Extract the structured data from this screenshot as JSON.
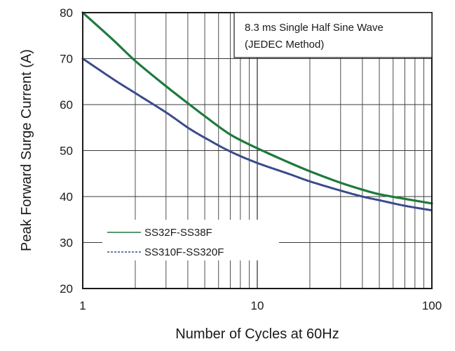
{
  "chart_data": {
    "type": "line",
    "title": "",
    "xlabel": "Number of Cycles at 60Hz",
    "ylabel": "Peak Forward Surge Current (A)",
    "x_scale": "log",
    "xlim": [
      1,
      100
    ],
    "ylim": [
      20,
      80
    ],
    "grid": true,
    "x_ticks": [
      1,
      10,
      100
    ],
    "x_tick_labels": [
      "1",
      "10",
      "100"
    ],
    "y_ticks": [
      20,
      30,
      40,
      50,
      60,
      70,
      80
    ],
    "y_tick_labels": [
      "20",
      "30",
      "40",
      "50",
      "60",
      "70",
      "80"
    ],
    "annotation": [
      "8.3 ms Single Half Sine Wave",
      "(JEDEC Method)"
    ],
    "legend_position": "lower-left",
    "series": [
      {
        "name": "SS32F-SS38F",
        "color": "#1e7a3c",
        "style": "solid",
        "x": [
          1,
          1.5,
          2,
          3,
          4,
          5,
          7,
          10,
          15,
          20,
          30,
          40,
          50,
          70,
          100
        ],
        "y": [
          80,
          74,
          69.5,
          64,
          60.3,
          57.5,
          53.5,
          50.5,
          47.5,
          45.5,
          43,
          41.5,
          40.5,
          39.5,
          38.5
        ]
      },
      {
        "name": "SS310F-SS320F",
        "color": "#3a4a8c",
        "style": "dashed",
        "x": [
          1,
          1.5,
          2,
          3,
          4,
          5,
          7,
          10,
          15,
          20,
          30,
          40,
          50,
          70,
          100
        ],
        "y": [
          70,
          65.5,
          62.5,
          58.3,
          55,
          52.8,
          49.8,
          47.3,
          45,
          43.3,
          41.3,
          40,
          39.2,
          38,
          37
        ]
      }
    ]
  }
}
